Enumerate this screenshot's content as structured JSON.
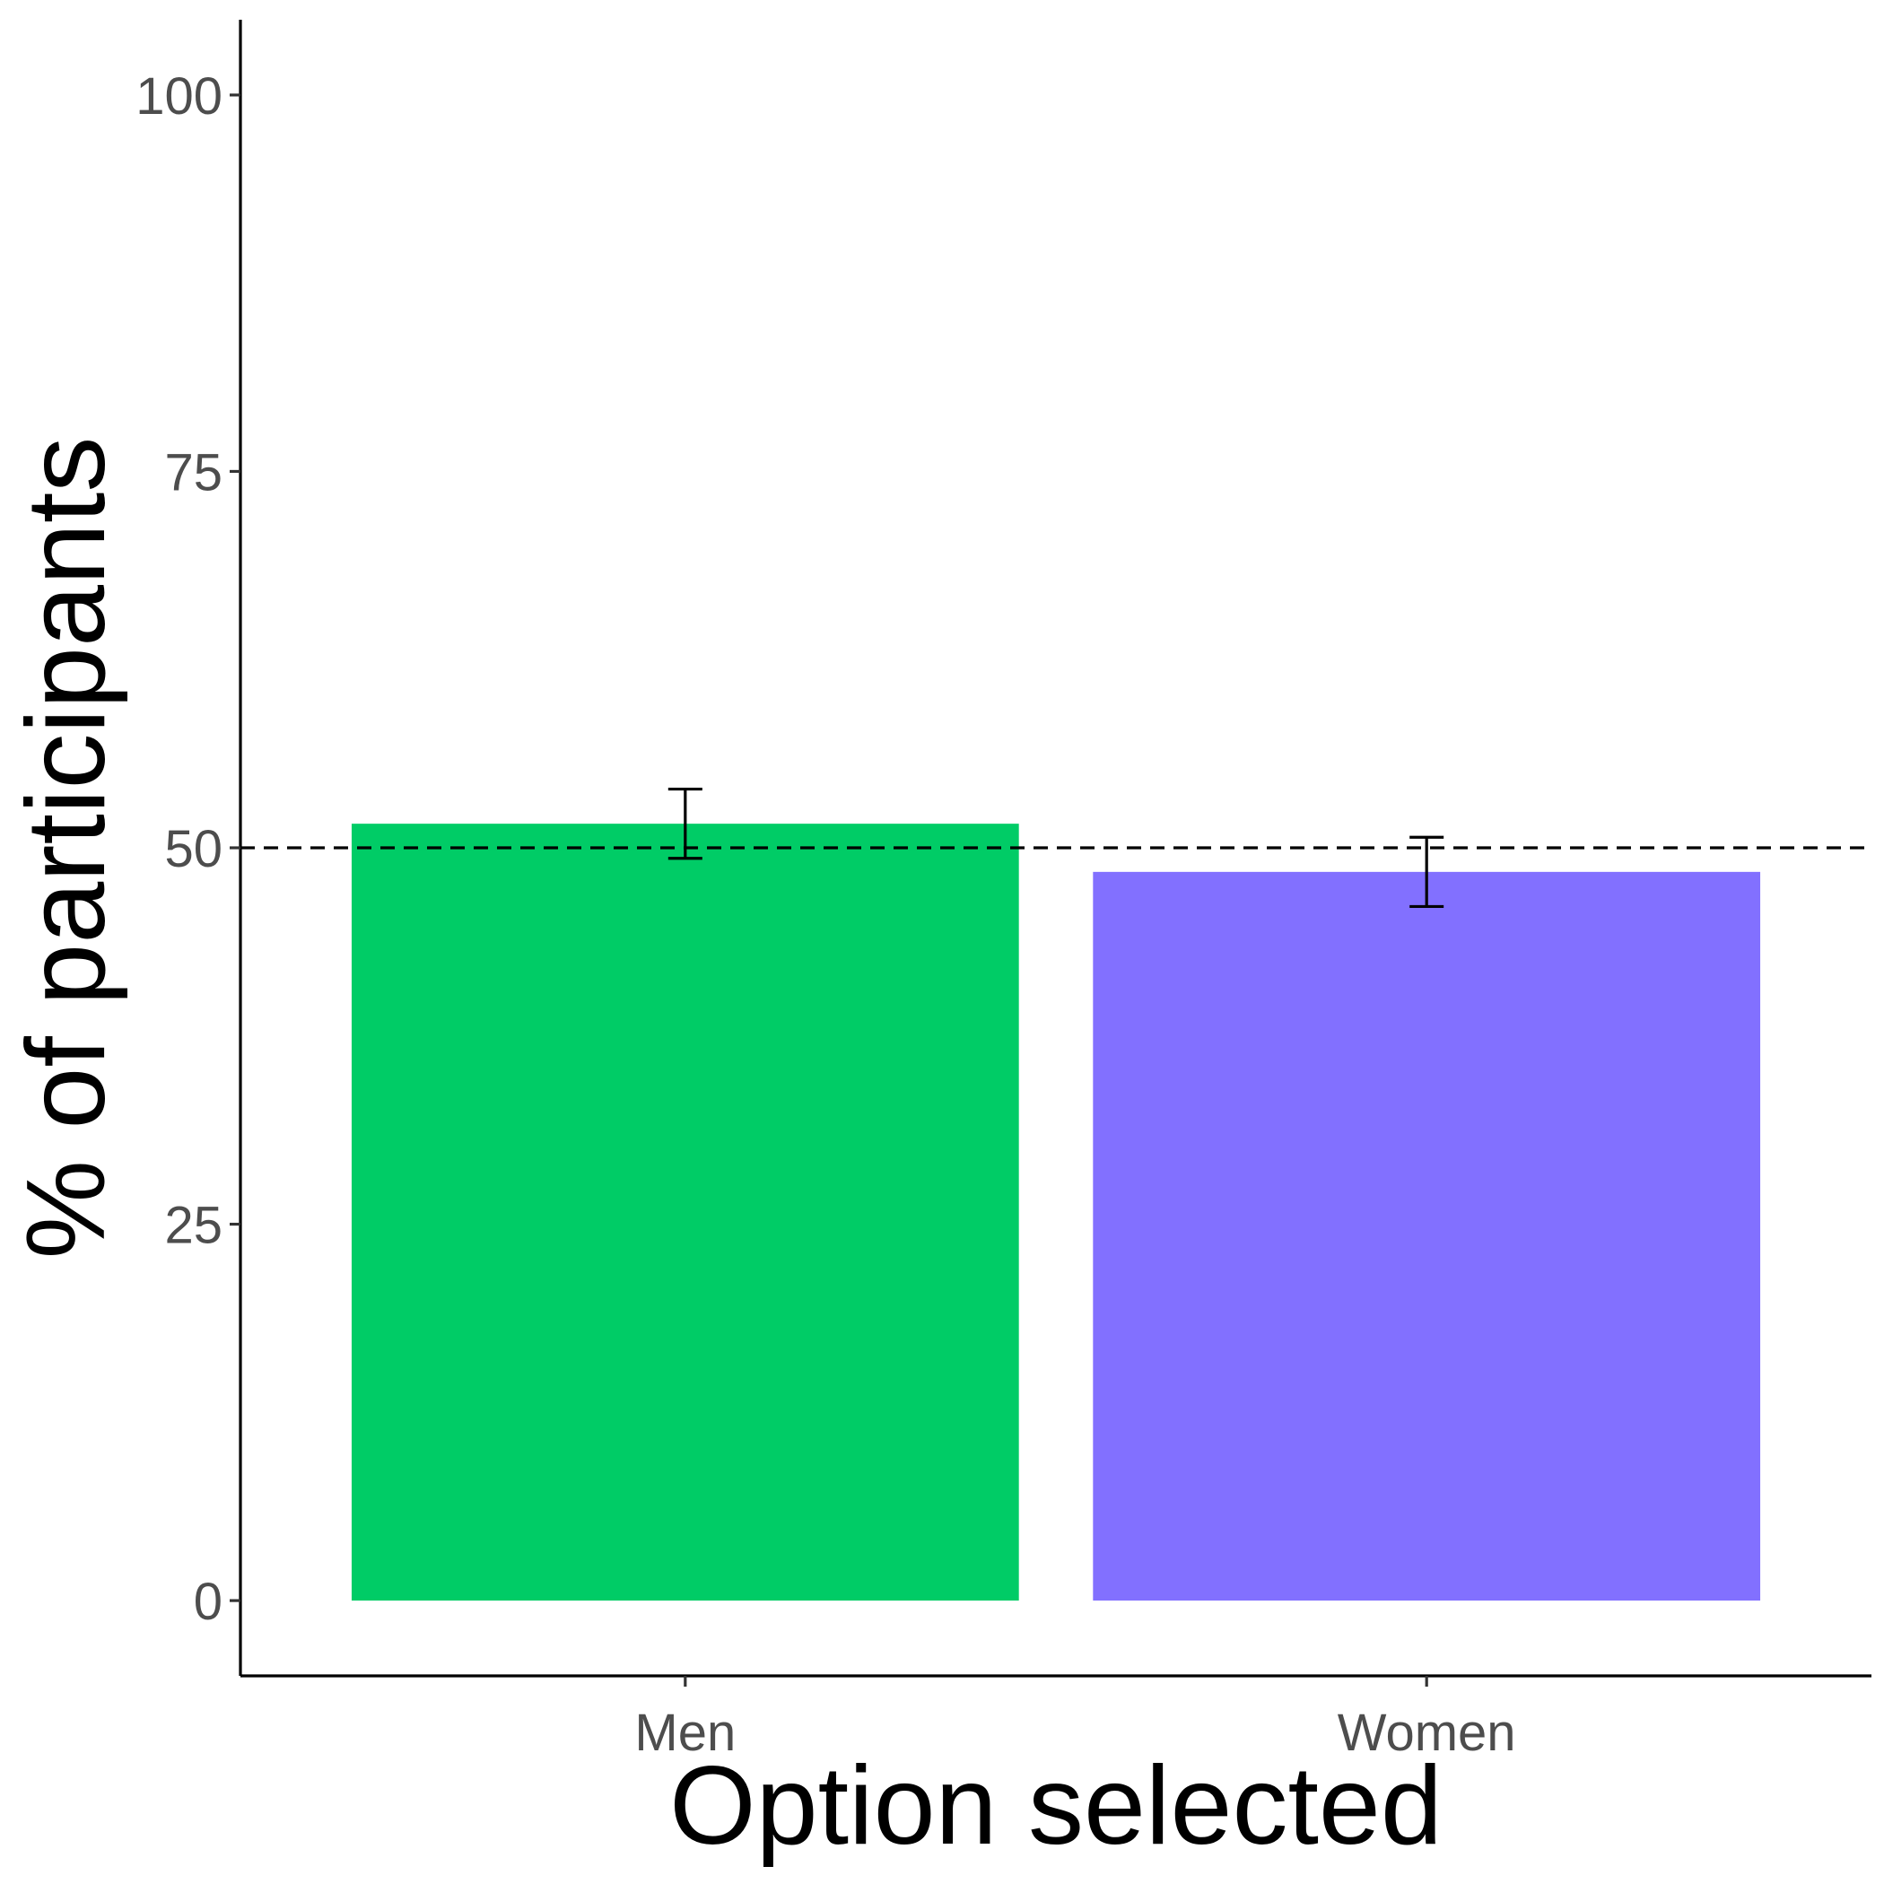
{
  "chart_data": {
    "type": "bar",
    "categories": [
      "Men",
      "Women"
    ],
    "values": [
      51.6,
      48.4
    ],
    "error_bars": [
      {
        "low": 49.3,
        "high": 53.9
      },
      {
        "low": 46.1,
        "high": 50.7
      }
    ],
    "colors": [
      "#00CC66",
      "#8270FF"
    ],
    "reference_line": {
      "y": 50,
      "style": "dashed"
    },
    "xlabel": "Option selected",
    "ylabel": "% of participants",
    "ylim": [
      -5,
      105
    ],
    "yticks": [
      0,
      25,
      50,
      75,
      100
    ],
    "ytick_labels": [
      "0",
      "25",
      "50",
      "75",
      "100"
    ],
    "grid": false,
    "legend": "none"
  }
}
